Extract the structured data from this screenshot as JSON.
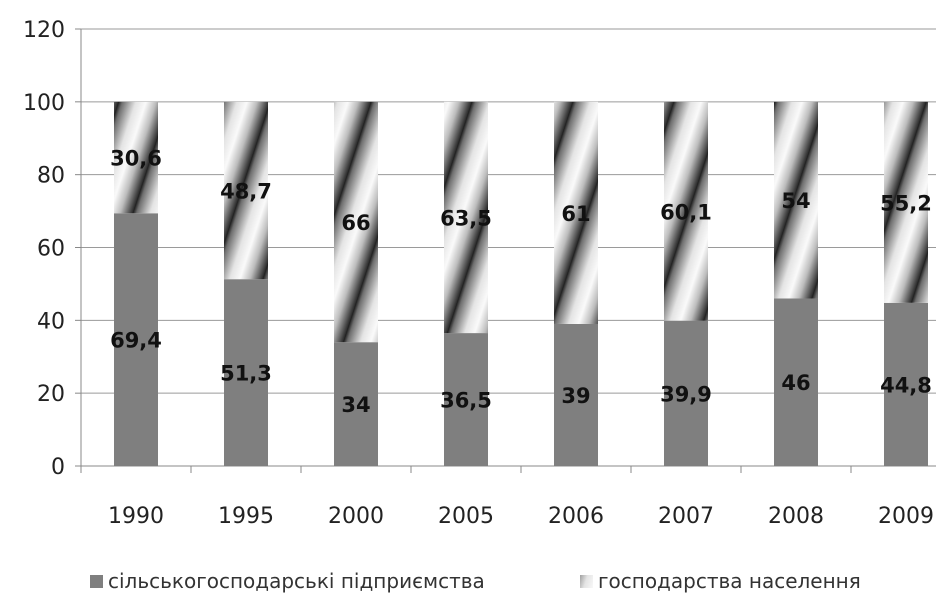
{
  "chart_data": {
    "type": "bar",
    "stacked": true,
    "categories": [
      "1990",
      "1995",
      "2000",
      "2005",
      "2006",
      "2007",
      "2008",
      "2009"
    ],
    "series": [
      {
        "name": "сільськогосподарські підприємства",
        "values": [
          69.4,
          51.3,
          34,
          36.5,
          39,
          39.9,
          46,
          44.8
        ],
        "labels": [
          "69,4",
          "51,3",
          "34",
          "36,5",
          "39",
          "39,9",
          "46",
          "44,8"
        ],
        "color": "#7f7f7f",
        "pattern": "solid"
      },
      {
        "name": "господарства населення",
        "values": [
          30.6,
          48.7,
          66,
          63.5,
          61,
          60.1,
          54,
          55.2
        ],
        "labels": [
          "30,6",
          "48,7",
          "66",
          "63,5",
          "61",
          "60,1",
          "54",
          "55,2"
        ],
        "color": "#bfbfbf",
        "pattern": "diagonal-gradient-stripes"
      }
    ],
    "ylim": [
      0,
      120
    ],
    "yticks": [
      0,
      20,
      40,
      60,
      80,
      100,
      120
    ],
    "grid": true,
    "legend_position": "bottom"
  }
}
